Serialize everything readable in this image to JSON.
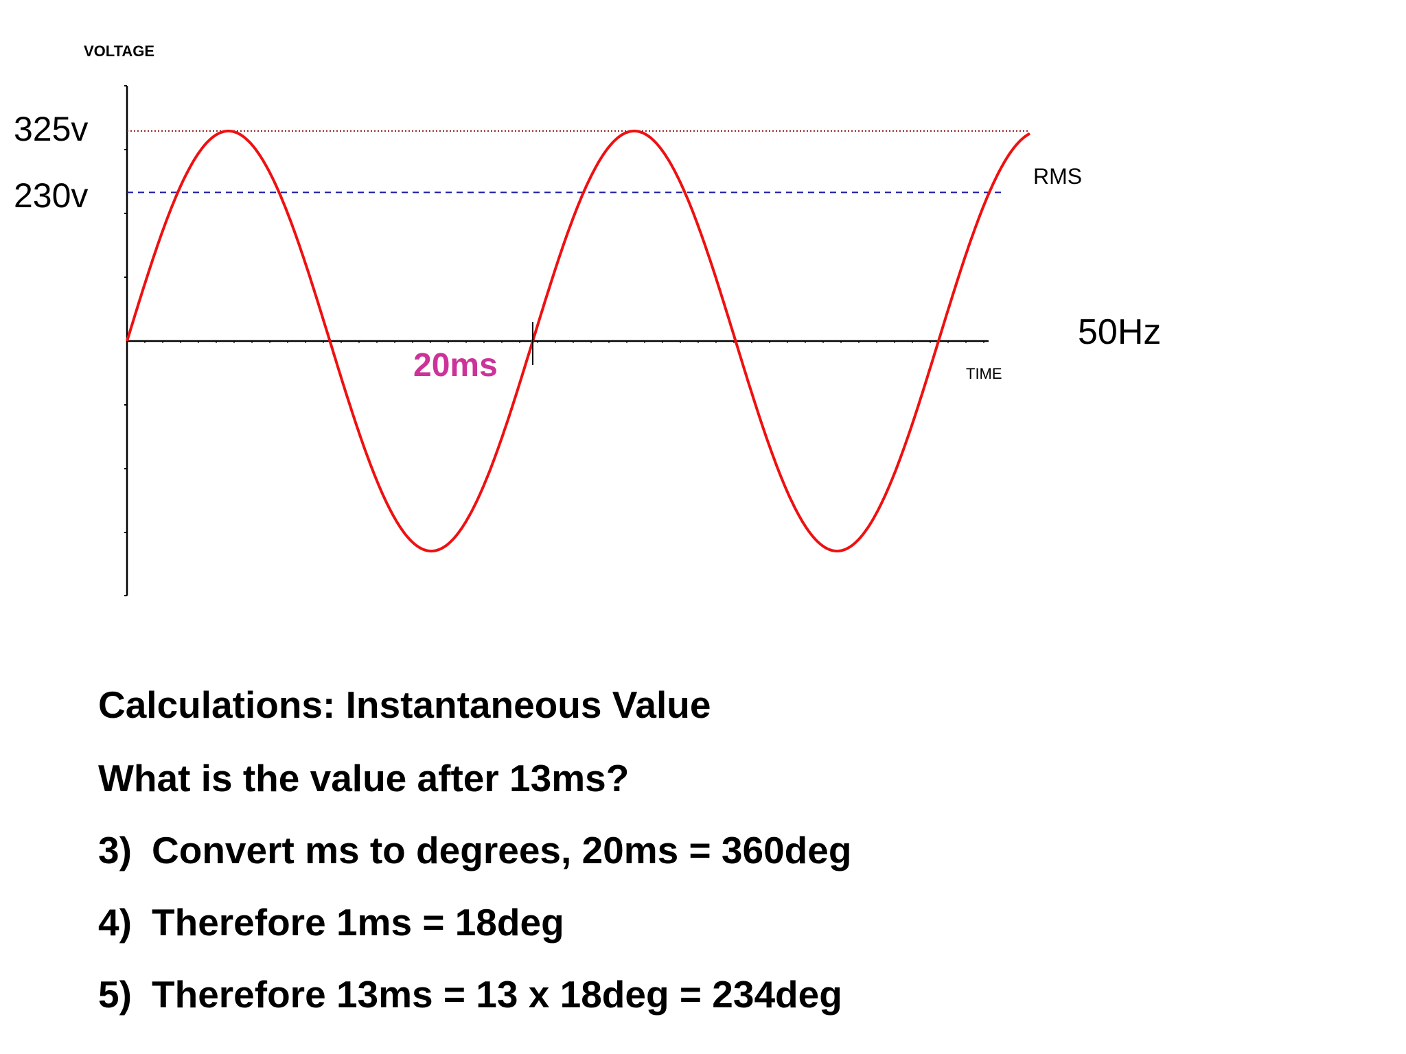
{
  "chart_data": {
    "type": "line",
    "y_axis_label": "VOLTAGE",
    "x_axis_label": "TIME",
    "peak_label": "325v",
    "rms_label_value": "230v",
    "rms_label": "RMS",
    "frequency_label": "50Hz",
    "period_label": "20ms",
    "peak_voltage": 325,
    "rms_voltage": 230,
    "frequency_hz": 50,
    "period_ms": 20,
    "xlim_ms": [
      0,
      44.5
    ],
    "ylim_v": [
      -395,
      395
    ],
    "series": [
      {
        "color": "#ee1111",
        "x_start_ms": 0,
        "x_end_ms": 44.5,
        "amplitude": 325
      }
    ],
    "peak_line_color": "#8b1a1a",
    "rms_line_color": "#1a1aa6"
  },
  "text": {
    "title": "Calculations: Instantaneous Value",
    "question": "What is the value after 13ms?",
    "steps": [
      {
        "num": "3)",
        "text": "Convert ms to degrees, 20ms = 360deg"
      },
      {
        "num": "4)",
        "text": "Therefore 1ms = 18deg"
      },
      {
        "num": "5)",
        "text": "Therefore 13ms = 13 x 18deg = 234deg"
      }
    ]
  }
}
